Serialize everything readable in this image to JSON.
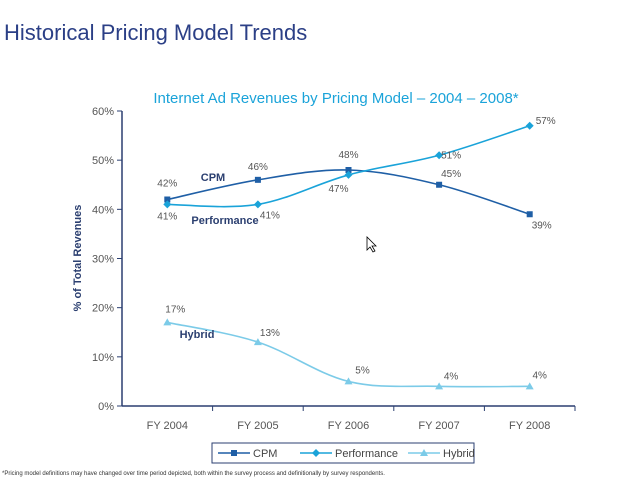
{
  "page_title": "Historical Pricing Model Trends",
  "footnote": "*Pricing model definitions may have changed over time period depicted, both within the survey process and definitionally by survey respondents.",
  "chart_data": {
    "type": "line",
    "title": "Internet Ad Revenues by Pricing Model – 2004 – 2008*",
    "xlabel": "",
    "ylabel": "% of Total Revenues",
    "categories": [
      "FY 2004",
      "FY 2005",
      "FY 2006",
      "FY 2007",
      "FY 2008"
    ],
    "ylim": [
      0,
      60
    ],
    "yticks": [
      "0%",
      "10%",
      "20%",
      "30%",
      "40%",
      "50%",
      "60%"
    ],
    "grid": false,
    "legend_position": "bottom",
    "series": [
      {
        "name": "CPM",
        "color": "#1f5fa6",
        "marker": "square",
        "values": [
          42,
          46,
          48,
          45,
          39
        ],
        "labels": [
          "42%",
          "46%",
          "48%",
          "45%",
          "39%"
        ],
        "inline_label": "CPM"
      },
      {
        "name": "Performance",
        "color": "#1aa3d9",
        "marker": "diamond",
        "values": [
          41,
          41,
          47,
          51,
          57
        ],
        "labels": [
          "41%",
          "41%",
          "47%",
          "51%",
          "57%"
        ],
        "inline_label": "Performance"
      },
      {
        "name": "Hybrid",
        "color": "#7ccbe8",
        "marker": "triangle",
        "values": [
          17,
          13,
          5,
          4,
          4
        ],
        "labels": [
          "17%",
          "13%",
          "5%",
          "4%",
          "4%"
        ],
        "inline_label": "Hybrid"
      }
    ]
  }
}
